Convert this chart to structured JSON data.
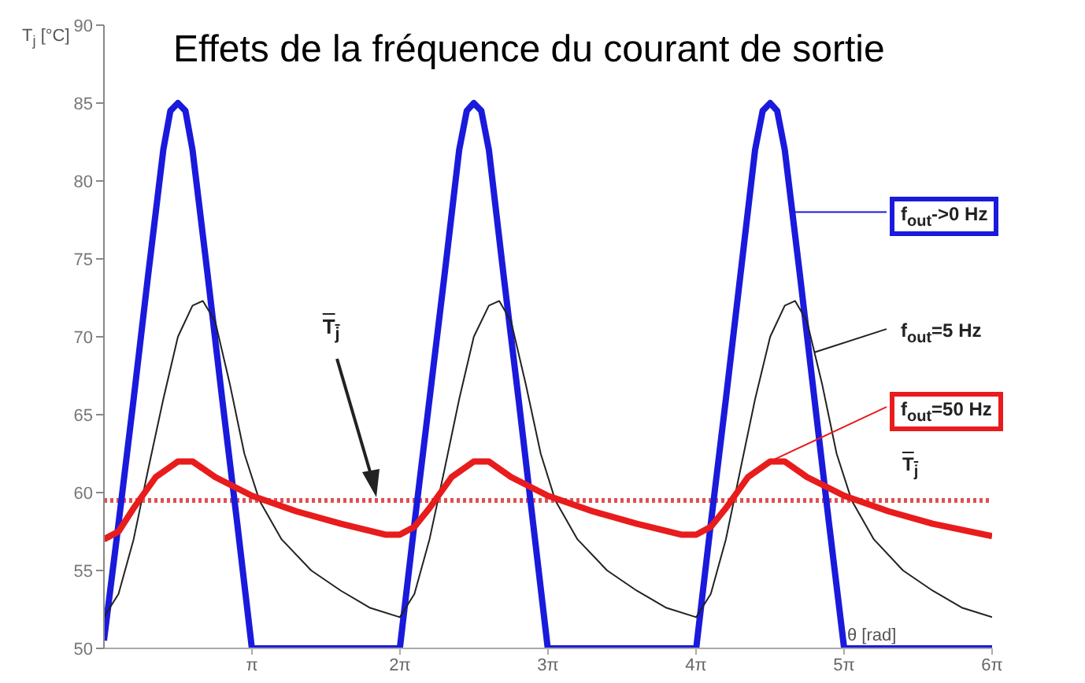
{
  "chart_data": {
    "type": "line",
    "title": "Effets de la fréquence du courant de sortie",
    "xlabel": "θ [rad]",
    "ylabel": "T$_{j}$ [°C]",
    "xlim": [
      0,
      18.85
    ],
    "xticks": [
      {
        "value": 3.1416,
        "label": "π"
      },
      {
        "value": 6.2832,
        "label": "2π"
      },
      {
        "value": 9.4248,
        "label": "3π"
      },
      {
        "value": 12.5664,
        "label": "4π"
      },
      {
        "value": 15.708,
        "label": "5π"
      },
      {
        "value": 18.8496,
        "label": "6π"
      }
    ],
    "ylim": [
      50,
      90
    ],
    "yticks": [
      50,
      55,
      60,
      65,
      70,
      75,
      80,
      85,
      90
    ],
    "grid": false,
    "legend": "right",
    "marker": "none",
    "line_style": "solid",
    "series": [
      {
        "name": "f$_{out}$->0 Hz",
        "color": "#1a1adc",
        "x": [
          0,
          0.31,
          0.63,
          0.94,
          1.26,
          1.41,
          1.57,
          1.73,
          1.88,
          2.2,
          2.51,
          2.83,
          3.14,
          6.28,
          6.59,
          6.91,
          7.23,
          7.54,
          7.7,
          7.85,
          8.01,
          8.17,
          8.48,
          8.8,
          9.11,
          9.42,
          12.57,
          12.88,
          13.2,
          13.51,
          13.82,
          13.98,
          14.14,
          14.29,
          14.45,
          14.77,
          15.08,
          15.39,
          15.71,
          18.85
        ],
        "values": [
          50.5,
          58,
          66,
          74,
          82,
          84.5,
          85,
          84.5,
          82,
          74,
          66,
          58,
          50,
          50,
          58,
          66,
          74,
          82,
          84.5,
          85,
          84.5,
          82,
          74,
          66,
          58,
          50,
          50,
          58,
          66,
          74,
          82,
          84.5,
          85,
          84.5,
          82,
          74,
          66,
          58,
          50,
          50
        ]
      },
      {
        "name": "f$_{out}$=5 Hz",
        "color": "#222222",
        "x": [
          0,
          0.31,
          0.63,
          0.94,
          1.26,
          1.57,
          1.88,
          2.1,
          2.36,
          2.67,
          2.98,
          3.3,
          3.77,
          4.4,
          5.03,
          5.65,
          6.28,
          6.59,
          6.91,
          7.23,
          7.54,
          7.85,
          8.17,
          8.39,
          8.64,
          8.95,
          9.27,
          9.58,
          10.05,
          10.68,
          11.31,
          11.94,
          12.57,
          12.88,
          13.2,
          13.51,
          13.82,
          14.14,
          14.45,
          14.67,
          14.92,
          15.24,
          15.55,
          15.87,
          16.34,
          16.96,
          17.59,
          18.22,
          18.85
        ],
        "values": [
          52,
          53.5,
          57,
          61.5,
          66,
          70,
          72,
          72.3,
          71,
          67,
          62.5,
          59.5,
          57,
          55,
          53.7,
          52.6,
          52,
          53.5,
          57,
          61.5,
          66,
          70,
          72,
          72.3,
          71,
          67,
          62.5,
          59.5,
          57,
          55,
          53.7,
          52.6,
          52,
          53.5,
          57,
          61.5,
          66,
          70,
          72,
          72.3,
          71,
          67,
          62.5,
          59.5,
          57,
          55,
          53.7,
          52.6,
          52
        ]
      },
      {
        "name": "f$_{out}$=50 Hz",
        "color": "#e81c1c",
        "x": [
          0,
          0.31,
          0.63,
          1.1,
          1.57,
          1.88,
          2.36,
          3.14,
          4.08,
          5.03,
          5.97,
          6.28,
          6.59,
          6.91,
          7.38,
          7.85,
          8.17,
          8.64,
          9.42,
          10.37,
          11.31,
          12.25,
          12.57,
          12.88,
          13.2,
          13.67,
          14.14,
          14.45,
          14.92,
          15.71,
          16.65,
          17.59,
          18.85
        ],
        "values": [
          57,
          57.5,
          59,
          61,
          62,
          62,
          61,
          59.8,
          58.8,
          58,
          57.3,
          57.3,
          57.8,
          59,
          61,
          62,
          62,
          61,
          59.8,
          58.8,
          58,
          57.3,
          57.3,
          57.8,
          59,
          61,
          62,
          62,
          61,
          59.8,
          58.8,
          58,
          57.2
        ]
      }
    ],
    "ref_lines": [
      {
        "axis": "y",
        "value": 59.5,
        "label": "T$_{j}$",
        "color": "#e05050",
        "line_style": "dotted"
      }
    ],
    "annotations": [
      {
        "text": "T$_{j}$",
        "x": 5.81,
        "y": 59.5
      }
    ]
  }
}
